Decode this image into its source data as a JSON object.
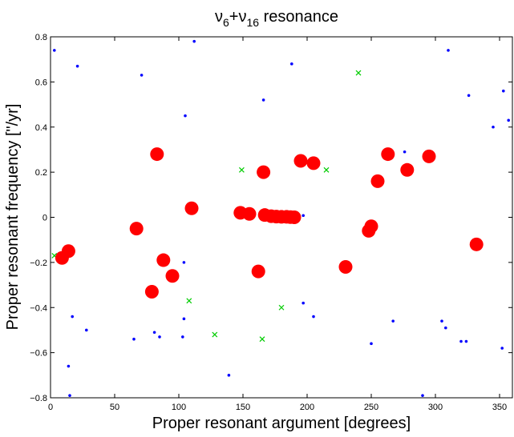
{
  "chart_data": {
    "type": "scatter",
    "title": {
      "symbol": "ν",
      "sub1": "6",
      "plus": "+",
      "sub2": "16",
      "rest": " resonance"
    },
    "xlabel": "Proper resonant argument [degrees]",
    "ylabel": "Proper resonant frequency [\"/yr]",
    "xlim": [
      0,
      360
    ],
    "ylim": [
      -0.8,
      0.8
    ],
    "xticks": [
      0,
      50,
      100,
      150,
      200,
      250,
      300,
      350
    ],
    "yticks": [
      -0.8,
      -0.6,
      -0.4,
      -0.2,
      0,
      0.2,
      0.4,
      0.6,
      0.8
    ],
    "xtick_labels": [
      "0",
      "50",
      "100",
      "150",
      "200",
      "250",
      "300",
      "350"
    ],
    "ytick_labels": [
      "−0.8",
      "−0.6",
      "−0.4",
      "−0.2",
      "0",
      "0.2",
      "0.4",
      "0.6",
      "0.8"
    ],
    "grid": false,
    "series": [
      {
        "marker": "dot",
        "color": "#0000ff",
        "points": [
          [
            3,
            0.74
          ],
          [
            21,
            0.67
          ],
          [
            71,
            0.63
          ],
          [
            112,
            0.78
          ],
          [
            188,
            0.68
          ],
          [
            310,
            0.74
          ],
          [
            166,
            0.52
          ],
          [
            326,
            0.54
          ],
          [
            353,
            0.56
          ],
          [
            357,
            0.43
          ],
          [
            105,
            0.45
          ],
          [
            345,
            0.4
          ],
          [
            276,
            0.29
          ],
          [
            192,
            0.002
          ],
          [
            197,
            0.008
          ],
          [
            178,
            0.0
          ],
          [
            182,
            0.0
          ],
          [
            104,
            -0.2
          ],
          [
            14,
            -0.66
          ],
          [
            15,
            -0.79
          ],
          [
            17,
            -0.44
          ],
          [
            28,
            -0.5
          ],
          [
            65,
            -0.54
          ],
          [
            81,
            -0.51
          ],
          [
            85,
            -0.53
          ],
          [
            103,
            -0.53
          ],
          [
            104,
            -0.45
          ],
          [
            139,
            -0.7
          ],
          [
            197,
            -0.38
          ],
          [
            205,
            -0.44
          ],
          [
            250,
            -0.56
          ],
          [
            267,
            -0.46
          ],
          [
            290,
            -0.79
          ],
          [
            305,
            -0.46
          ],
          [
            308,
            -0.49
          ],
          [
            320,
            -0.55
          ],
          [
            324,
            -0.55
          ],
          [
            352,
            -0.58
          ]
        ]
      },
      {
        "marker": "x",
        "color": "#00cc00",
        "points": [
          [
            240,
            0.64
          ],
          [
            149,
            0.21
          ],
          [
            215,
            0.21
          ],
          [
            3,
            -0.17
          ],
          [
            188,
            0.01
          ],
          [
            250,
            -0.07
          ],
          [
            108,
            -0.37
          ],
          [
            180,
            -0.4
          ],
          [
            128,
            -0.52
          ],
          [
            165,
            -0.54
          ]
        ]
      },
      {
        "marker": "circle",
        "color": "#ff0000",
        "points": [
          [
            83,
            0.28
          ],
          [
            263,
            0.28
          ],
          [
            295,
            0.27
          ],
          [
            195,
            0.25
          ],
          [
            205,
            0.24
          ],
          [
            166,
            0.2
          ],
          [
            278,
            0.21
          ],
          [
            255,
            0.16
          ],
          [
            110,
            0.04
          ],
          [
            148,
            0.02
          ],
          [
            155,
            0.015
          ],
          [
            167,
            0.01
          ],
          [
            172,
            0.005
          ],
          [
            176,
            0.003
          ],
          [
            180,
            0.002
          ],
          [
            184,
            0.002
          ],
          [
            187,
            0.001
          ],
          [
            190,
            0.0
          ],
          [
            67,
            -0.05
          ],
          [
            250,
            -0.04
          ],
          [
            248,
            -0.06
          ],
          [
            9,
            -0.18
          ],
          [
            14,
            -0.15
          ],
          [
            88,
            -0.19
          ],
          [
            95,
            -0.26
          ],
          [
            162,
            -0.24
          ],
          [
            230,
            -0.22
          ],
          [
            332,
            -0.12
          ],
          [
            79,
            -0.33
          ]
        ]
      }
    ]
  }
}
